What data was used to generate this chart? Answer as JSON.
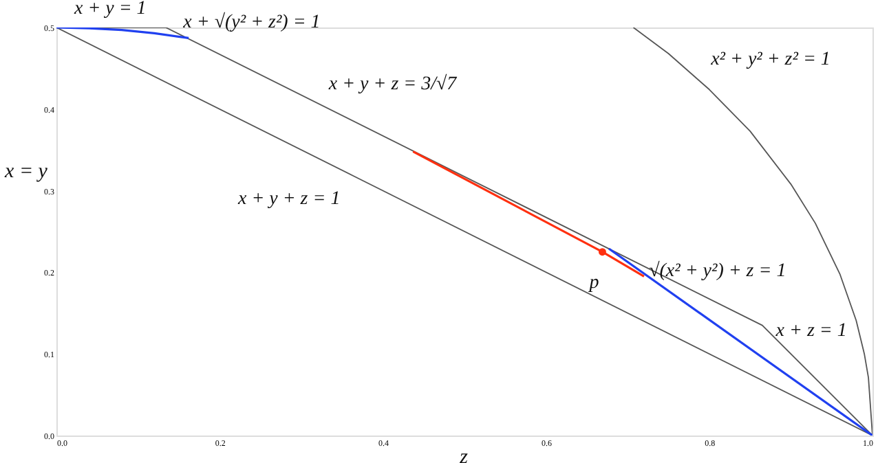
{
  "chart_data": {
    "type": "line",
    "xlabel": "z",
    "ylabel": "x = y",
    "xlim": [
      0,
      1
    ],
    "ylim": [
      0,
      0.5
    ],
    "xticks": [
      {
        "value": 0,
        "label": "0.0"
      },
      {
        "value": 0.2,
        "label": "0.2"
      },
      {
        "value": 0.4,
        "label": "0.4"
      },
      {
        "value": 0.6,
        "label": "0.6"
      },
      {
        "value": 0.8,
        "label": "0.8"
      },
      {
        "value": 1,
        "label": "1.0"
      }
    ],
    "yticks": [
      {
        "value": 0,
        "label": "0.0"
      },
      {
        "value": 0.1,
        "label": "0.1"
      },
      {
        "value": 0.2,
        "label": "0.2"
      },
      {
        "value": 0.3,
        "label": "0.3"
      },
      {
        "value": 0.4,
        "label": "0.4"
      },
      {
        "value": 0.5,
        "label": "0.5"
      }
    ],
    "grid": false,
    "legend": false,
    "marker": "none",
    "line_style": "solid",
    "series": [
      {
        "color": "#555555",
        "x": [
          0,
          1
        ],
        "values": [
          0.5,
          0
        ]
      },
      {
        "color": "#555555",
        "x": [
          0,
          0.134,
          0.865,
          1
        ],
        "values": [
          0.5,
          0.5,
          0.135,
          0
        ]
      },
      {
        "color": "#555555",
        "x": [
          0.707,
          0.75,
          0.8,
          0.85,
          0.9,
          0.93,
          0.96,
          0.98,
          0.99,
          0.995,
          1
        ],
        "values": [
          0.5,
          0.468,
          0.424,
          0.373,
          0.308,
          0.26,
          0.198,
          0.141,
          0.1,
          0.071,
          0
        ]
      },
      {
        "color": "#2040f0",
        "x": [
          0,
          0.04,
          0.08,
          0.12,
          0.162
        ],
        "values": [
          0.5,
          0.499,
          0.497,
          0.493,
          0.487
        ]
      },
      {
        "color": "#2040f0",
        "x": [
          0.677,
          1
        ],
        "values": [
          0.229,
          0
        ]
      },
      {
        "color": "#ff3010",
        "x": [
          0.437,
          0.669,
          0.72
        ],
        "values": [
          0.348,
          0.225,
          0.195
        ]
      },
      {
        "type": "scatter",
        "marker": "circle",
        "color": "#ff3010",
        "x": [
          0.669
        ],
        "values": [
          0.225
        ]
      }
    ],
    "annotations": [
      {
        "text": "x + y = 1",
        "x": 0.066,
        "y": 0.5
      },
      {
        "text": "x + √(y² + z²) = 1",
        "x": 0.12,
        "y": 0.493
      },
      {
        "text": "x + y + z = 3/√7",
        "x": 0.39,
        "y": 0.372
      },
      {
        "text": "x + y + z = 1",
        "x": 0.302,
        "y": 0.349
      },
      "x² + y² + z² = 1",
      {
        "text": "p",
        "x": 0.669,
        "y": 0.225
      },
      {
        "text": "√(x² + y²) + z = 1",
        "x": 0.8,
        "y": 0.141
      },
      {
        "text": "x + z = 1",
        "x": 0.92,
        "y": 0.08
      }
    ]
  }
}
